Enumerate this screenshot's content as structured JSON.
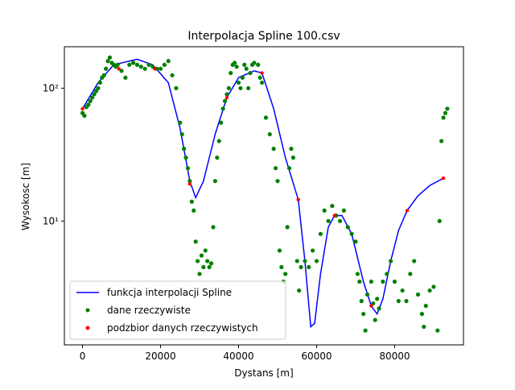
{
  "chart_data": {
    "type": "line",
    "title": "Interpolacja Spline 100.csv",
    "x_label": "Dystans [m]",
    "y_label": "Wysokosc [m]",
    "log_y": true,
    "legend": "lower left",
    "xlim": [
      -4650,
      97650
    ],
    "ylim": [
      1.17,
      205
    ],
    "xticks": [
      0,
      20000,
      40000,
      60000,
      80000
    ],
    "yticks": [
      {
        "value": 10,
        "label": "10¹"
      },
      {
        "value": 100,
        "label": "10²"
      }
    ],
    "series": [
      {
        "name": "funkcja interpolacji Spline",
        "color": "#0000ff",
        "type": "line",
        "x": [
          0,
          4000,
          8000,
          14000,
          18000,
          22000,
          25000,
          27500,
          29000,
          31000,
          34000,
          37000,
          40000,
          44000,
          46000,
          49000,
          52000,
          55300,
          57000,
          58500,
          59500,
          61000,
          63000,
          64600,
          66500,
          69000,
          72000,
          74000,
          75500,
          77000,
          79000,
          81000,
          83200,
          86000,
          89000,
          92500
        ],
        "values": [
          70,
          110,
          150,
          165,
          150,
          110,
          50,
          20,
          15,
          20,
          45,
          85,
          120,
          135,
          130,
          70,
          30,
          14.5,
          5,
          1.6,
          1.7,
          4,
          9,
          11,
          11,
          8,
          3.5,
          2.3,
          2.0,
          2.6,
          5,
          8.5,
          12,
          15.5,
          18.5,
          21
        ]
      },
      {
        "name": "dane rzeczywiste",
        "color": "#008000",
        "type": "scatter",
        "x": [
          0,
          500,
          1000,
          1500,
          2000,
          2500,
          3000,
          3500,
          4000,
          4500,
          5000,
          5500,
          6000,
          6500,
          7000,
          7500,
          8000,
          8500,
          9000,
          10000,
          11000,
          12000,
          13000,
          14000,
          15000,
          16000,
          17000,
          18000,
          19000,
          20000,
          21000,
          22000,
          23000,
          24000,
          25000,
          25500,
          26000,
          26500,
          27000,
          27500,
          28000,
          28500,
          29000,
          29500,
          30000,
          30500,
          31000,
          31500,
          32000,
          32500,
          33000,
          33500,
          34000,
          34500,
          35000,
          35500,
          36000,
          36500,
          37000,
          37500,
          38000,
          38500,
          39000,
          39500,
          40000,
          40500,
          41000,
          41500,
          42000,
          42500,
          43000,
          43500,
          44000,
          45000,
          45500,
          46000,
          47000,
          48000,
          49000,
          49500,
          50000,
          50500,
          51000,
          51500,
          52000,
          52500,
          53000,
          53500,
          54000,
          55000,
          55500,
          56000,
          57000,
          58000,
          59000,
          60000,
          61000,
          62000,
          63000,
          64000,
          65000,
          66000,
          67000,
          68000,
          69000,
          70000,
          70500,
          71000,
          71500,
          72000,
          72500,
          73000,
          74000,
          74500,
          75000,
          75500,
          76000,
          77000,
          78000,
          79000,
          80000,
          81000,
          82000,
          83000,
          84000,
          85000,
          86000,
          87000,
          87500,
          88000,
          89000,
          90000,
          91000,
          91500,
          92000,
          92500,
          93000,
          93500
        ],
        "values": [
          65,
          62,
          72,
          75,
          80,
          85,
          90,
          95,
          100,
          110,
          120,
          125,
          140,
          160,
          170,
          155,
          150,
          145,
          150,
          135,
          120,
          150,
          155,
          150,
          145,
          140,
          150,
          145,
          140,
          140,
          150,
          160,
          125,
          100,
          55,
          45,
          35,
          30,
          25,
          20,
          14,
          12,
          7,
          5,
          4,
          5.5,
          4.5,
          6,
          5,
          4.5,
          4.8,
          9,
          20,
          30,
          40,
          55,
          70,
          80,
          90,
          100,
          130,
          150,
          155,
          145,
          110,
          100,
          120,
          150,
          140,
          100,
          130,
          150,
          155,
          150,
          120,
          110,
          60,
          45,
          35,
          25,
          20,
          6,
          4.5,
          3.5,
          4,
          9,
          25,
          35,
          30,
          5,
          3,
          4.5,
          5,
          4.5,
          6,
          5,
          8,
          12,
          10,
          13,
          11,
          10,
          12,
          9,
          8,
          7,
          4,
          3.5,
          2.5,
          2,
          1.5,
          2.8,
          3.5,
          2.4,
          1.8,
          2.6,
          2.2,
          3.5,
          4,
          5,
          3.5,
          2.5,
          3,
          2.5,
          4,
          5,
          2.8,
          2,
          1.6,
          2.3,
          3,
          3.2,
          1.5,
          10,
          40,
          60,
          65,
          70
        ]
      },
      {
        "name": "podzbior danych rzeczywistych",
        "color": "#ff0000",
        "type": "scatter",
        "x": [
          0,
          9300,
          18500,
          27500,
          37000,
          46000,
          55300,
          64600,
          74000,
          83200,
          92500
        ],
        "values": [
          70,
          140,
          140,
          19,
          85,
          130,
          14.5,
          11,
          2.3,
          12,
          21
        ]
      }
    ]
  }
}
